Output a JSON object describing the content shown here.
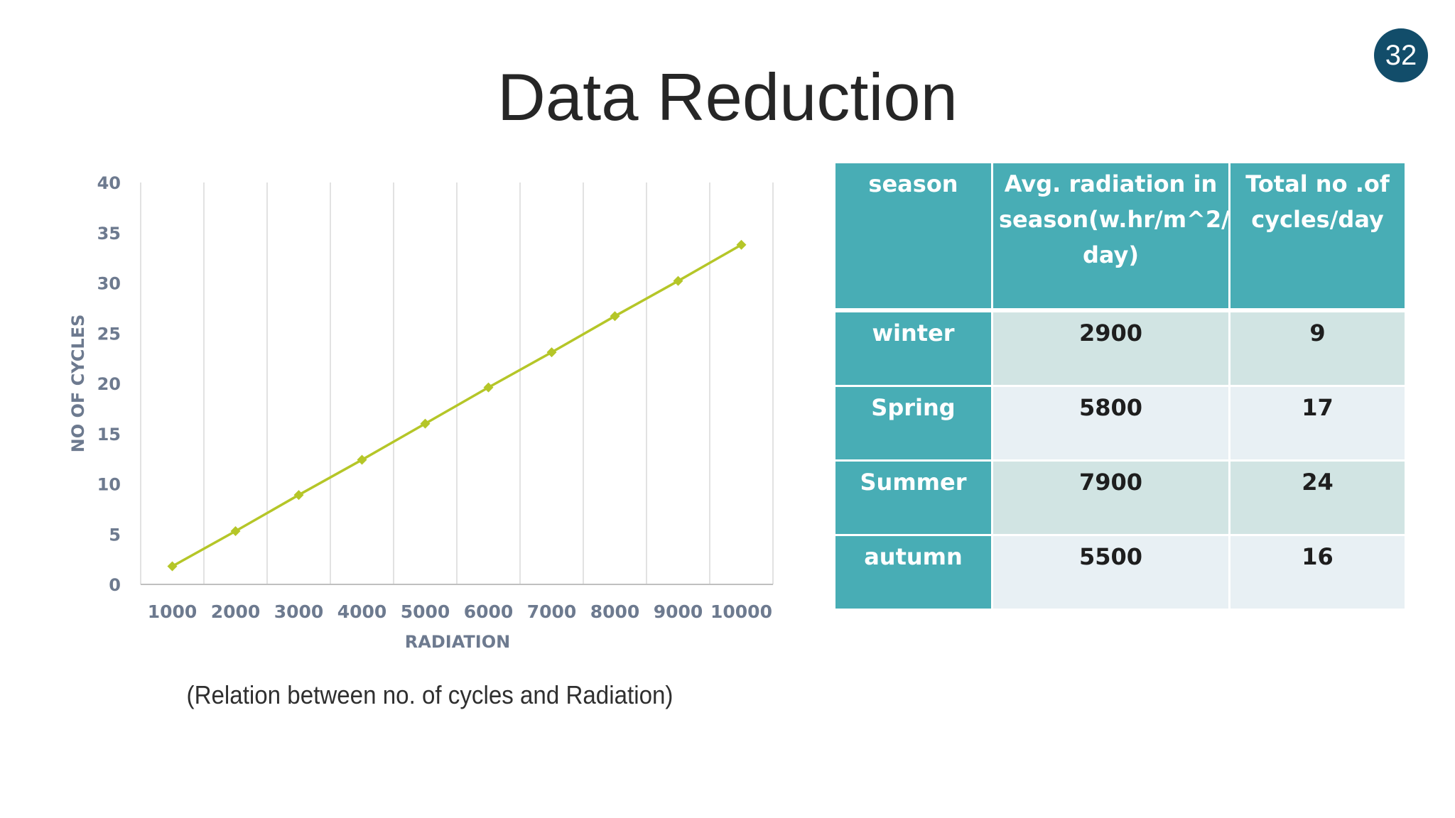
{
  "slide": {
    "number": "32",
    "title": "Data Reduction"
  },
  "caption": "(Relation between no. of cycles and Radiation)",
  "colors": {
    "line": "#b5c628",
    "header": "#48adb5",
    "row_odd": "#d1e4e3",
    "row_even": "#e8f0f4",
    "badge": "#124d6a"
  },
  "table": {
    "headers": [
      "season",
      "Avg. radiation in season(w.hr/m^2/ day)",
      "Total no .of cycles/day"
    ],
    "rows": [
      [
        "winter",
        "2900",
        "9"
      ],
      [
        "Spring",
        "5800",
        "17"
      ],
      [
        "Summer",
        "7900",
        "24"
      ],
      [
        "autumn",
        "5500",
        "16"
      ]
    ]
  },
  "chart_data": {
    "type": "line",
    "title": "",
    "xlabel": "RADIATION",
    "ylabel": "NO OF CYCLES",
    "categories": [
      "1000",
      "2000",
      "3000",
      "4000",
      "5000",
      "6000",
      "7000",
      "8000",
      "9000",
      "10000"
    ],
    "series": [
      {
        "values": [
          1.8,
          5.3,
          8.9,
          12.4,
          16.0,
          19.6,
          23.1,
          26.7,
          30.2,
          33.8
        ]
      }
    ],
    "ylim": [
      0,
      40
    ],
    "yticks": [
      "0",
      "5",
      "10",
      "15",
      "20",
      "25",
      "30",
      "35",
      "40"
    ],
    "grid": "vertical",
    "legend": "none"
  }
}
